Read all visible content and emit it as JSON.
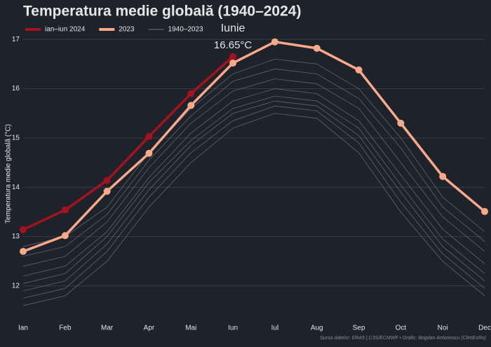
{
  "chart_data": {
    "type": "line",
    "title": "Temperatura medie globală (1940–2024)",
    "y_label": "Temperatura medie globală (°C)",
    "source": "Sursa datelor: ERA5 | C3S/ECMWF • Grafic: Bogdan Antonescu (ClimEsRo)",
    "annotation": "Iunie",
    "categories": [
      "Ian",
      "Feb",
      "Mar",
      "Apr",
      "Mai",
      "Iun",
      "Iul",
      "Aug",
      "Sep",
      "Oct",
      "Noi",
      "Dec"
    ],
    "ylim": [
      11.33,
      17.23
    ],
    "yticks": [
      12,
      13,
      14,
      15,
      16,
      17
    ],
    "grid": true,
    "series": [
      {
        "name": "ian–iun 2024",
        "color": "#a5121f",
        "values": [
          13.14,
          13.54,
          14.14,
          15.03,
          15.9,
          16.65,
          null,
          null,
          null,
          null,
          null,
          null
        ],
        "value_labels": [
          null,
          null,
          null,
          null,
          null,
          "16.65°C"
        ]
      },
      {
        "name": "2023",
        "color": "#f7a98a",
        "values": [
          12.7,
          13.02,
          13.92,
          14.69,
          15.66,
          16.52,
          16.95,
          16.82,
          16.38,
          15.3,
          14.22,
          13.51
        ]
      },
      {
        "name": "1940–2023",
        "color": "#8c8f96",
        "lines": [
          [
            11.6,
            11.8,
            12.5,
            13.6,
            14.5,
            15.2,
            15.5,
            15.4,
            14.7,
            13.5,
            12.5,
            11.8
          ],
          [
            11.75,
            11.95,
            12.7,
            13.8,
            14.7,
            15.35,
            15.65,
            15.55,
            14.9,
            13.7,
            12.65,
            11.95
          ],
          [
            11.9,
            12.1,
            12.85,
            13.95,
            14.85,
            15.5,
            15.75,
            15.65,
            15.05,
            13.9,
            12.8,
            12.1
          ],
          [
            12.05,
            12.25,
            13.0,
            14.1,
            14.95,
            15.6,
            15.85,
            15.75,
            15.2,
            14.05,
            12.95,
            12.25
          ],
          [
            12.2,
            12.4,
            13.1,
            14.2,
            15.1,
            15.75,
            16.0,
            15.9,
            15.35,
            14.25,
            13.15,
            12.45
          ],
          [
            12.4,
            12.6,
            13.3,
            14.4,
            15.3,
            15.95,
            16.2,
            16.1,
            15.6,
            14.5,
            13.4,
            12.7
          ],
          [
            12.6,
            12.8,
            13.45,
            14.55,
            15.45,
            16.15,
            16.4,
            16.3,
            15.8,
            14.8,
            13.6,
            12.9
          ],
          [
            12.8,
            13.0,
            13.6,
            14.7,
            15.6,
            16.3,
            16.6,
            16.5,
            16.0,
            15.0,
            13.8,
            13.1
          ]
        ]
      }
    ]
  }
}
